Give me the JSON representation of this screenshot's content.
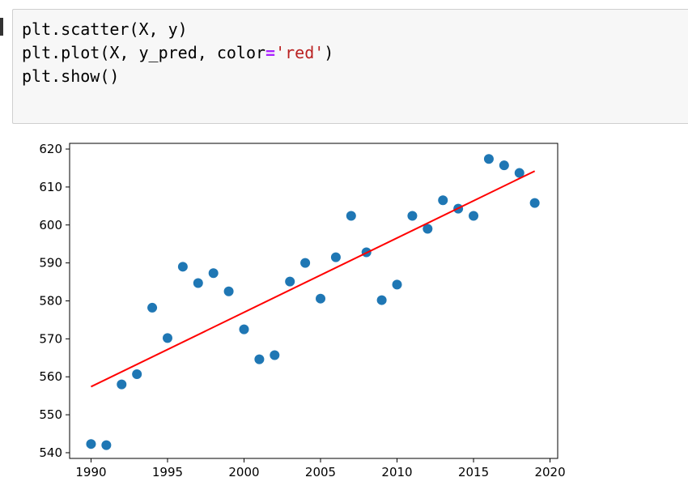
{
  "cell": {
    "code_lines": [
      {
        "tokens": [
          {
            "text": "plt.scatter(X, y)",
            "kind": "plain"
          }
        ]
      },
      {
        "tokens": [
          {
            "text": "plt.plot(X, y_pred, color",
            "kind": "plain"
          },
          {
            "text": "=",
            "kind": "eq"
          },
          {
            "text": "'red'",
            "kind": "str"
          },
          {
            "text": ")",
            "kind": "plain"
          }
        ]
      },
      {
        "tokens": [
          {
            "text": "plt.show()",
            "kind": "plain"
          }
        ]
      }
    ]
  },
  "chart_data": {
    "type": "scatter",
    "title": "",
    "xlabel": "",
    "ylabel": "",
    "xlim": [
      1988.6,
      2020.5
    ],
    "ylim": [
      538.5,
      621.5
    ],
    "xticks": [
      "1990",
      "1995",
      "2000",
      "2005",
      "2010",
      "2015",
      "2020"
    ],
    "yticks": [
      "540",
      "550",
      "560",
      "570",
      "580",
      "590",
      "600",
      "610",
      "620"
    ],
    "grid": false,
    "legend": "none",
    "scatter": {
      "color": "#1f77b4",
      "x": [
        1990,
        1991,
        1992,
        1993,
        1994,
        1995,
        1996,
        1997,
        1998,
        1999,
        2000,
        2001,
        2002,
        2003,
        2004,
        2005,
        2006,
        2007,
        2008,
        2009,
        2010,
        2011,
        2012,
        2013,
        2014,
        2015,
        2016,
        2017,
        2018,
        2019
      ],
      "y": [
        542.3,
        542.0,
        558.0,
        560.7,
        578.2,
        570.2,
        589.0,
        584.7,
        587.3,
        582.5,
        572.5,
        564.6,
        565.7,
        585.1,
        590.0,
        580.6,
        591.5,
        602.4,
        592.8,
        580.2,
        584.3,
        602.4,
        599.0,
        606.5,
        604.3,
        602.4,
        617.4,
        615.7,
        613.7,
        605.8
      ]
    },
    "line": {
      "color": "#ff0000",
      "x": [
        1990,
        2019
      ],
      "y": [
        557.4,
        614.2
      ]
    }
  }
}
